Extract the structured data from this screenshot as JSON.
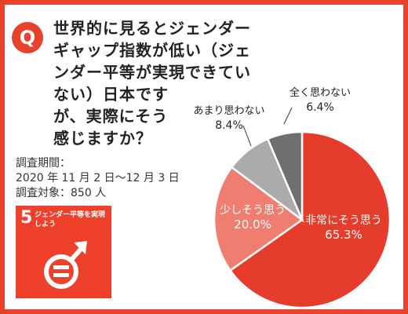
{
  "question": {
    "badge": "Q",
    "lines": [
      "世界的に見るとジェンダー",
      "ギャップ指数が低い（ジェ",
      "ンダー平等が実現できてい",
      "ない）日本です",
      "が、実際にそう",
      "感じますか？"
    ]
  },
  "survey": {
    "period_label": "調査期間：",
    "period": "2020 年 11 月 2 日〜12 月 3 日",
    "target": "調査対象：850 人"
  },
  "sdg": {
    "number": "5",
    "title": "ジェンダー平等を実現しよう",
    "icon": "gender-equality-icon"
  },
  "colors": {
    "frame": "#e8412c",
    "sdg_red": "#ef402b"
  },
  "chart_data": {
    "type": "pie",
    "title": "",
    "slices": [
      {
        "label": "非常にそう思う",
        "value": 65.3,
        "display": "65.3%",
        "color": "#e63c2b",
        "text_color": "#ffffff"
      },
      {
        "label": "少しそう思う",
        "value": 20.0,
        "display": "20.0%",
        "color": "#f07e70",
        "text_color": "#ffffff"
      },
      {
        "label": "あまり思わない",
        "value": 8.4,
        "display": "8.4%",
        "color": "#ababab",
        "text_color": "#222222"
      },
      {
        "label": "全く思わない",
        "value": 6.4,
        "display": "6.4%",
        "color": "#6f6f6f",
        "text_color": "#222222"
      }
    ]
  }
}
